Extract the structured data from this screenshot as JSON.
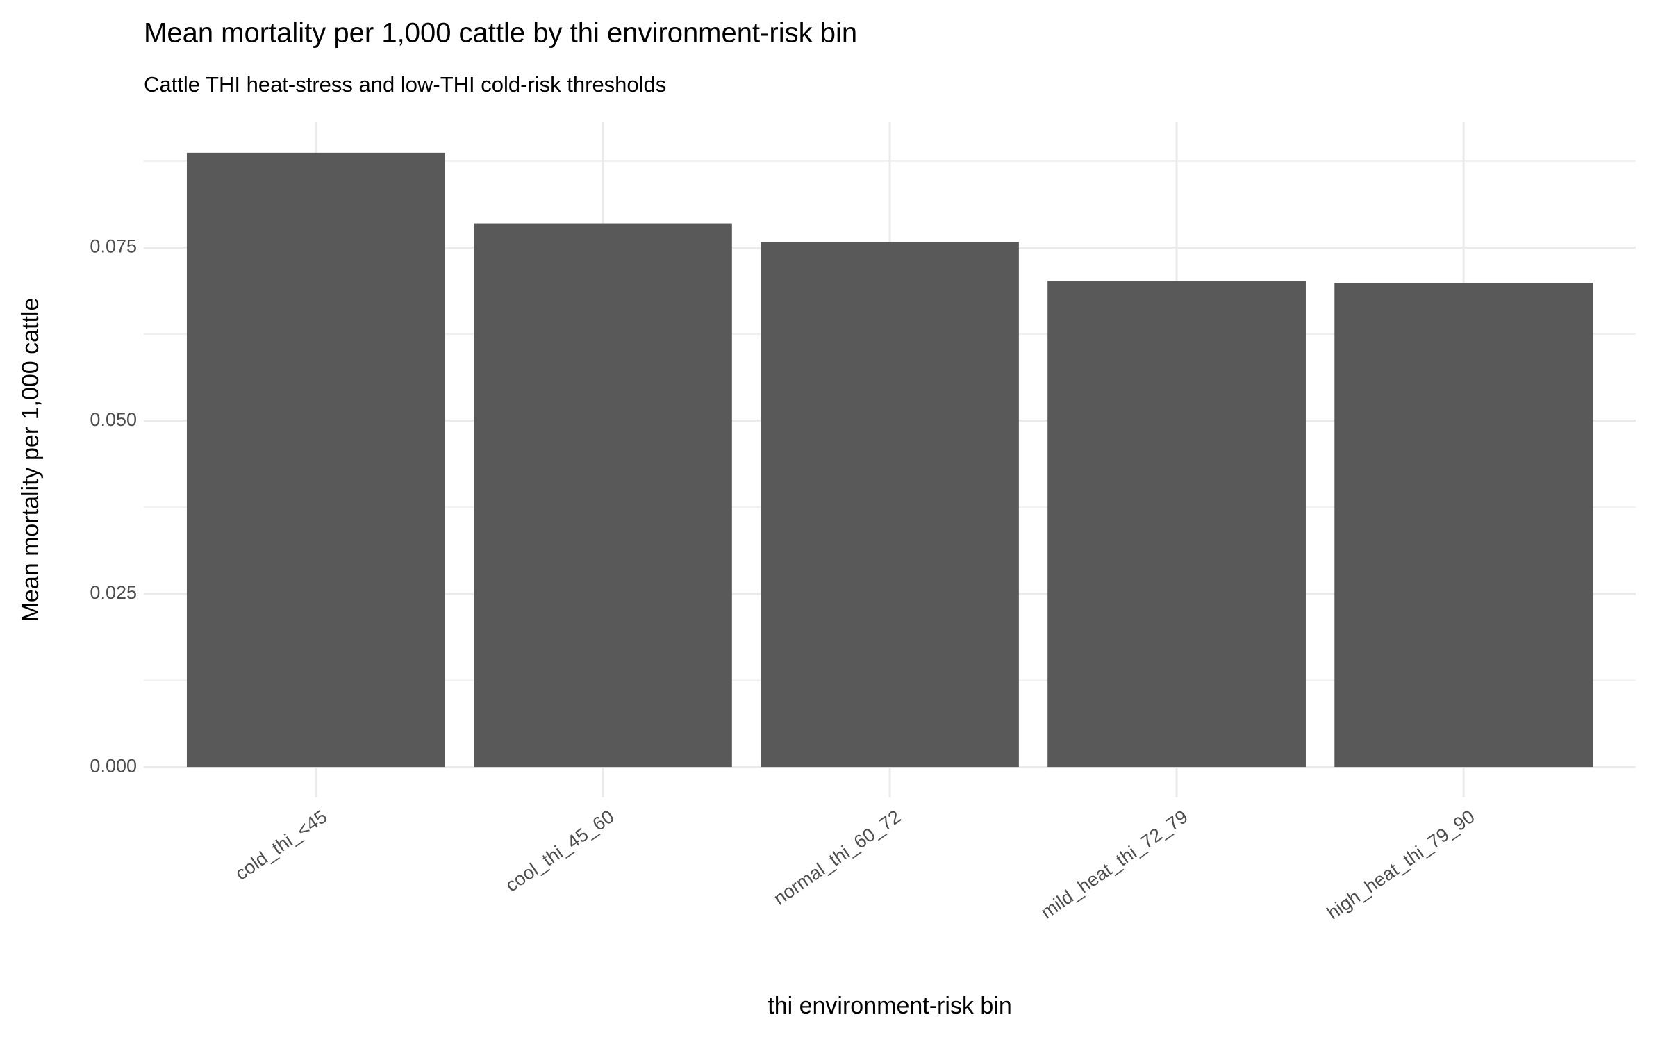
{
  "chart_data": {
    "type": "bar",
    "title": "Mean mortality per 1,000 cattle by thi environment-risk bin",
    "subtitle": "Cattle THI heat-stress and low-THI cold-risk thresholds",
    "x_label": "thi environment-risk bin",
    "y_label": "Mean mortality per 1,000 cattle",
    "categories": [
      "cold_thi_<45",
      "cool_thi_45_60",
      "normal_thi_60_72",
      "mild_heat_thi_72_79",
      "high_heat_thi_79_90"
    ],
    "values": [
      0.0887,
      0.0785,
      0.0758,
      0.0702,
      0.0699
    ],
    "color": "#595959",
    "ylim": [
      -0.0044,
      0.0931
    ],
    "yticks": [
      {
        "value": 0,
        "label": "0.000"
      },
      {
        "value": 0.025,
        "label": "0.025"
      },
      {
        "value": 0.05,
        "label": "0.050"
      },
      {
        "value": 0.075,
        "label": "0.075"
      }
    ],
    "yminor": [
      0.0125,
      0.0375,
      0.0625,
      0.0875
    ],
    "grid": true
  }
}
